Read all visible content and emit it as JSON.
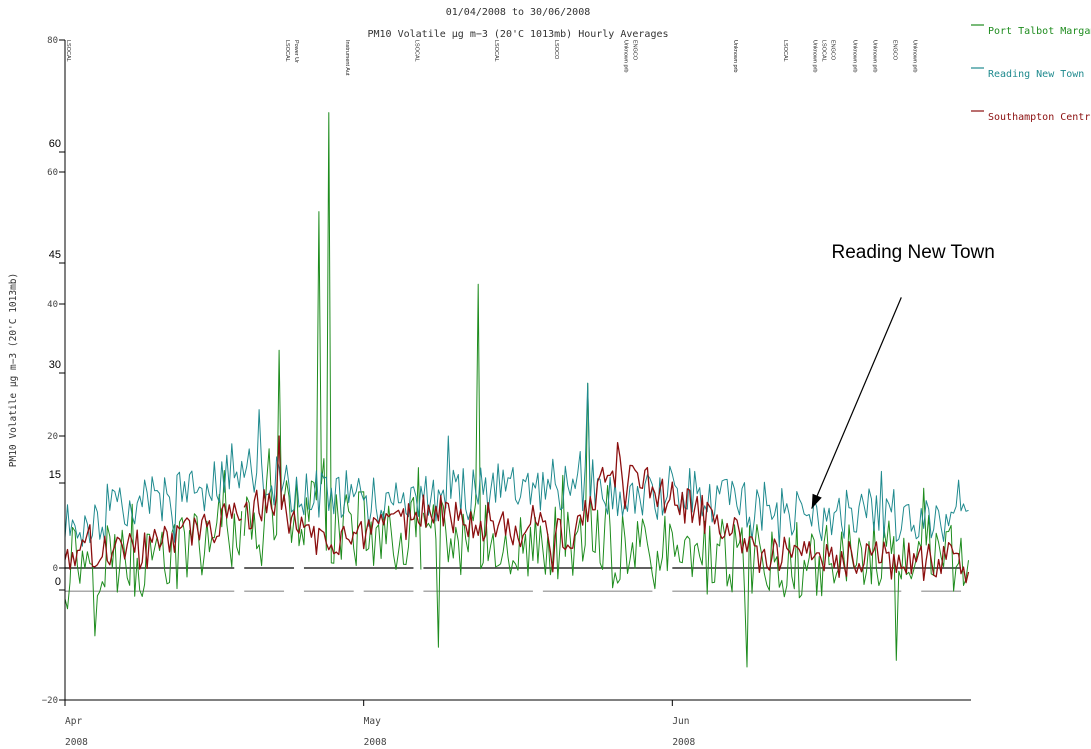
{
  "chart_data": {
    "type": "line",
    "title": "01/04/2008 to 30/06/2008",
    "subtitle": "PM10 Volatile µg m−3 (20'C 1013mb) Hourly Averages",
    "ylabel": "PM10 Volatile µg m−3 (20'C 1013mb)",
    "xlabel": "",
    "ylim": [
      -20,
      80
    ],
    "xlim": [
      "2008-04-01",
      "2008-07-01"
    ],
    "x_ticks": [
      {
        "date": "2008-04-01",
        "month": "Apr",
        "year": "2008"
      },
      {
        "date": "2008-05-01",
        "month": "May",
        "year": "2008"
      },
      {
        "date": "2008-06-01",
        "month": "Jun",
        "year": "2008"
      }
    ],
    "y_ticks_left": [
      "80",
      "60",
      "40",
      "20",
      "0",
      "−20"
    ],
    "y_ticks_right": [
      "60",
      "45",
      "30",
      "15",
      "0"
    ],
    "grid": false,
    "legend": "top-right",
    "zero_line": true,
    "series": [
      {
        "name": "Port Talbot Margam",
        "color": "#1e8c1e",
        "samples_per_day": 4,
        "noise": 6,
        "base": [
          {
            "date": "2008-04-01",
            "y": 2
          },
          {
            "date": "2008-04-10",
            "y": 1
          },
          {
            "date": "2008-04-18",
            "y": 5
          },
          {
            "date": "2008-04-24",
            "y": 9
          },
          {
            "date": "2008-04-26",
            "y": 7
          },
          {
            "date": "2008-05-05",
            "y": 5
          },
          {
            "date": "2008-05-15",
            "y": 4
          },
          {
            "date": "2008-05-22",
            "y": 3
          },
          {
            "date": "2008-06-01",
            "y": 2
          },
          {
            "date": "2008-06-10",
            "y": 1
          },
          {
            "date": "2008-06-20",
            "y": 2
          },
          {
            "date": "2008-06-30",
            "y": 2
          }
        ],
        "spikes": [
          {
            "date": "2008-04-22",
            "y": 33
          },
          {
            "date": "2008-04-26",
            "y": 54
          },
          {
            "date": "2008-04-27",
            "y": 69
          },
          {
            "date": "2008-05-12",
            "y": 43
          },
          {
            "date": "2008-05-23",
            "y": 28
          },
          {
            "date": "2008-06-08",
            "y": -15
          },
          {
            "date": "2008-06-23",
            "y": -14
          },
          {
            "date": "2008-05-08",
            "y": -12
          }
        ],
        "segments": [
          {
            "start": "2008-04-01",
            "end": "2008-04-18"
          },
          {
            "start": "2008-04-19",
            "end": "2008-05-06"
          },
          {
            "start": "2008-05-07",
            "end": "2008-06-30"
          }
        ]
      },
      {
        "name": "Reading New Town",
        "color": "#1f8a8e",
        "samples_per_day": 4,
        "noise": 4,
        "base": [
          {
            "date": "2008-04-01",
            "y": 6
          },
          {
            "date": "2008-04-10",
            "y": 10
          },
          {
            "date": "2008-04-20",
            "y": 15
          },
          {
            "date": "2008-04-23",
            "y": 12
          },
          {
            "date": "2008-05-01",
            "y": 10
          },
          {
            "date": "2008-05-10",
            "y": 11
          },
          {
            "date": "2008-05-20",
            "y": 13
          },
          {
            "date": "2008-05-28",
            "y": 10
          },
          {
            "date": "2008-06-01",
            "y": 12
          },
          {
            "date": "2008-06-15",
            "y": 8
          },
          {
            "date": "2008-06-30",
            "y": 8
          }
        ],
        "spikes": [
          {
            "date": "2008-04-20",
            "y": 24
          },
          {
            "date": "2008-05-23",
            "y": 28
          },
          {
            "date": "2008-05-09",
            "y": 20
          }
        ],
        "segments": [
          {
            "start": "2008-04-01",
            "end": "2008-06-30"
          }
        ]
      },
      {
        "name": "Southampton Centre",
        "color": "#8b0f0f",
        "samples_per_day": 4,
        "noise": 3,
        "base": [
          {
            "date": "2008-04-01",
            "y": 2
          },
          {
            "date": "2008-04-10",
            "y": 3
          },
          {
            "date": "2008-04-17",
            "y": 7
          },
          {
            "date": "2008-04-22",
            "y": 10
          },
          {
            "date": "2008-04-25",
            "y": 5
          },
          {
            "date": "2008-05-01",
            "y": 4
          },
          {
            "date": "2008-05-08",
            "y": 9
          },
          {
            "date": "2008-05-15",
            "y": 6
          },
          {
            "date": "2008-05-22",
            "y": 5
          },
          {
            "date": "2008-05-26",
            "y": 15
          },
          {
            "date": "2008-06-03",
            "y": 9
          },
          {
            "date": "2008-06-10",
            "y": 2
          },
          {
            "date": "2008-06-20",
            "y": 1
          },
          {
            "date": "2008-06-30",
            "y": 1
          }
        ],
        "spikes": [
          {
            "date": "2008-04-22",
            "y": 20
          },
          {
            "date": "2008-05-26",
            "y": 19
          }
        ],
        "segments": [
          {
            "start": "2008-04-01",
            "end": "2008-04-18"
          },
          {
            "start": "2008-04-19",
            "end": "2008-06-30"
          }
        ]
      }
    ],
    "baseline_segments": [
      {
        "start": "2008-04-01",
        "end": "2008-04-18",
        "y": 0
      },
      {
        "start": "2008-04-19",
        "end": "2008-04-24",
        "y": 0
      },
      {
        "start": "2008-04-25",
        "end": "2008-05-06",
        "y": 0
      },
      {
        "start": "2008-05-07",
        "end": "2008-05-30",
        "y": 0
      },
      {
        "start": "2008-06-01",
        "end": "2008-06-30",
        "y": 0
      },
      {
        "start": "2008-04-01",
        "end": "2008-04-18",
        "y": -3.5
      },
      {
        "start": "2008-04-19",
        "end": "2008-04-23",
        "y": -3.5
      },
      {
        "start": "2008-04-25",
        "end": "2008-04-30",
        "y": -3.5
      },
      {
        "start": "2008-05-01",
        "end": "2008-05-06",
        "y": -3.5
      },
      {
        "start": "2008-05-07",
        "end": "2008-05-18",
        "y": -3.5
      },
      {
        "start": "2008-05-19",
        "end": "2008-05-30",
        "y": -3.5
      },
      {
        "start": "2008-06-01",
        "end": "2008-06-24",
        "y": -3.5
      },
      {
        "start": "2008-06-26",
        "end": "2008-06-30",
        "y": -3.5
      }
    ],
    "event_labels": [
      {
        "date": "2008-04-01",
        "lines": [
          "LSOCAL"
        ]
      },
      {
        "date": "2008-04-23",
        "lines": [
          "LSOCAL",
          "Power Ur"
        ]
      },
      {
        "date": "2008-04-29",
        "lines": [
          "Instrument Aut"
        ]
      },
      {
        "date": "2008-05-06",
        "lines": [
          "LSOCAL"
        ]
      },
      {
        "date": "2008-05-14",
        "lines": [
          "LSOCAL"
        ]
      },
      {
        "date": "2008-05-20",
        "lines": [
          "LSOCO"
        ]
      },
      {
        "date": "2008-05-27",
        "lines": [
          "Unknown prb",
          "ENGCO"
        ]
      },
      {
        "date": "2008-06-07",
        "lines": [
          "Unknown prb"
        ]
      },
      {
        "date": "2008-06-12",
        "lines": [
          "LSOCAL"
        ]
      },
      {
        "date": "2008-06-15",
        "lines": [
          "Unknown prb",
          "LSOCAL",
          "ENGCO"
        ]
      },
      {
        "date": "2008-06-19",
        "lines": [
          "Unknown prb"
        ]
      },
      {
        "date": "2008-06-21",
        "lines": [
          "Unknown prb"
        ]
      },
      {
        "date": "2008-06-23",
        "lines": [
          "ENGCO"
        ]
      },
      {
        "date": "2008-06-25",
        "lines": [
          "Unknown prb"
        ]
      }
    ],
    "annotation": {
      "text": "Reading New Town",
      "label_near": {
        "date": "2008-06-20",
        "y": 47
      },
      "arrow_from": {
        "date": "2008-06-24",
        "y": 41
      },
      "arrow_to": {
        "date": "2008-06-15",
        "y": 9
      }
    }
  }
}
